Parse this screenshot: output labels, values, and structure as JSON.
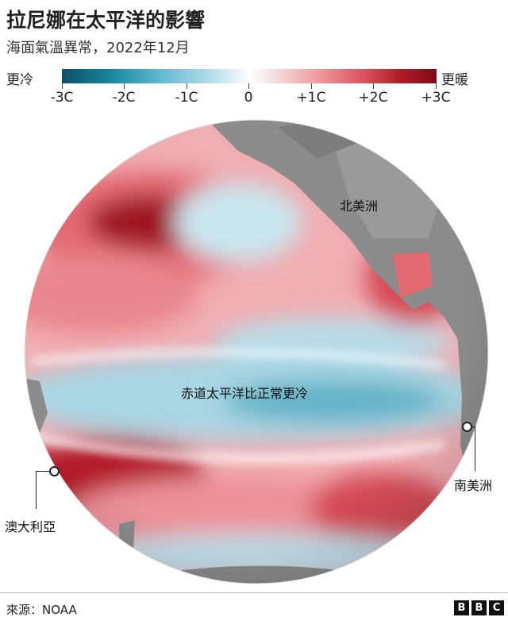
{
  "header": {
    "title": "拉尼娜在太平洋的影響",
    "subtitle": "海面氣溫異常，2022年12月"
  },
  "legend": {
    "low_label": "更冷",
    "high_label": "更暖",
    "ticks": [
      "-3C",
      "-2C",
      "-1C",
      "0",
      "+1C",
      "+2C",
      "+3C"
    ]
  },
  "map": {
    "labels": {
      "north_america": "北美洲",
      "equator": "赤道太平洋比正常更冷",
      "australia": "澳大利亞",
      "south_america": "南美洲"
    }
  },
  "footer": {
    "source": "來源：NOAA",
    "logo": [
      "B",
      "B",
      "C"
    ]
  },
  "colors": {
    "cold": "#0b4f66",
    "neutral": "#ffffff",
    "warm": "#7c0a15",
    "land": "#8c8c8c"
  }
}
